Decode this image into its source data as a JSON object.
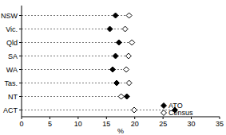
{
  "chart_data": {
    "type": "dot",
    "orientation": "horizontal",
    "x_label": "%",
    "categories": [
      "NSW",
      "Vic.",
      "Qld",
      "SA",
      "WA",
      "Tas.",
      "NT",
      "ACT"
    ],
    "series": [
      {
        "name": "ATO",
        "color": "#000000",
        "marker": "diamond",
        "values": [
          16.6,
          15.6,
          17.2,
          16.6,
          16.1,
          16.8,
          18.6,
          27.1
        ]
      },
      {
        "name": "Census",
        "color": "#000000",
        "marker": "open-diamond",
        "values": [
          19.0,
          18.3,
          19.5,
          18.9,
          18.5,
          19.0,
          17.6,
          19.9
        ]
      }
    ],
    "xlim": [
      0,
      35
    ],
    "xticks": [
      0,
      5,
      10,
      15,
      20,
      25,
      30,
      35
    ],
    "grid": false,
    "legend": "bottom-right"
  }
}
